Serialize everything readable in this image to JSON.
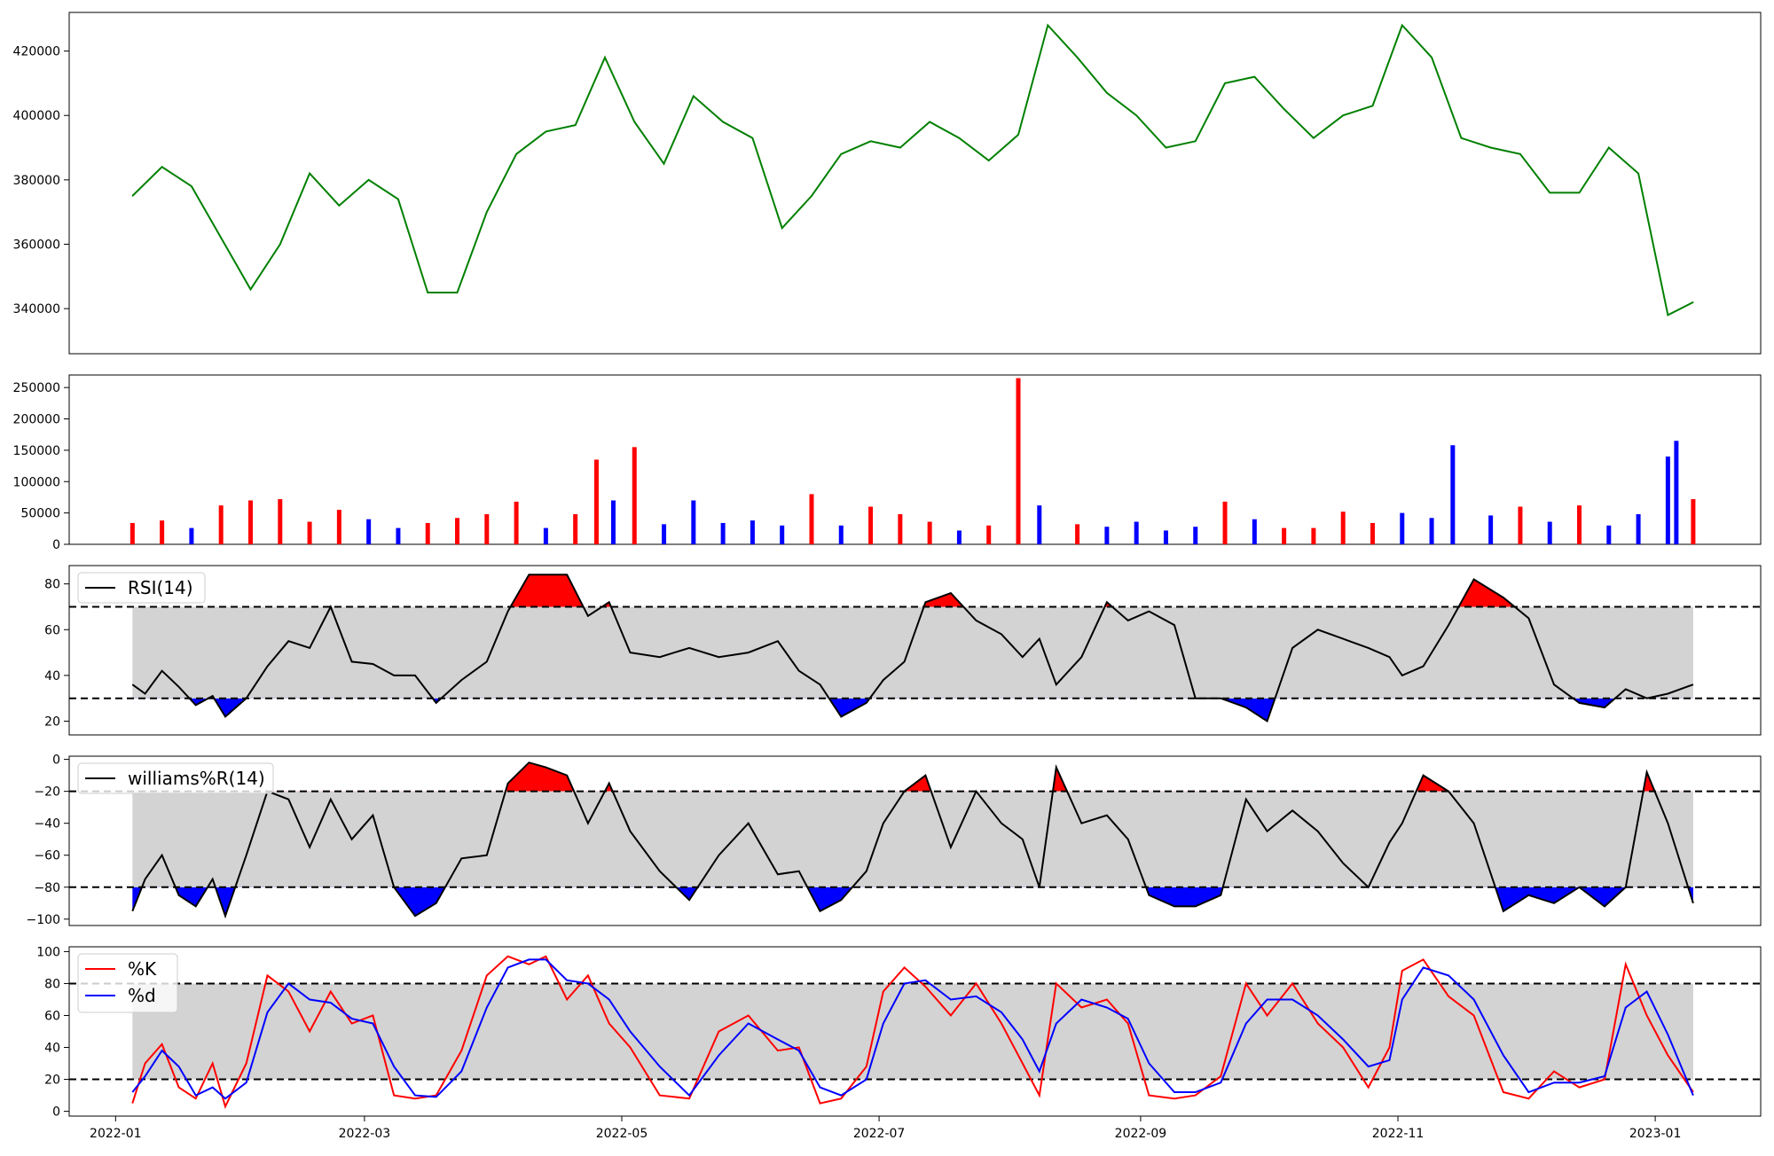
{
  "chart_data": [
    {
      "type": "line",
      "panel": "price",
      "color": "#008000",
      "ylim": [
        326000,
        432000
      ],
      "yticks": [
        340000,
        360000,
        380000,
        400000,
        420000
      ],
      "yticklabels": [
        "340000",
        "360000",
        "380000",
        "400000",
        "420000"
      ],
      "x": [
        "2022-01-05",
        "2022-01-12",
        "2022-01-19",
        "2022-01-26",
        "2022-02-02",
        "2022-02-09",
        "2022-02-16",
        "2022-02-23",
        "2022-03-02",
        "2022-03-09",
        "2022-03-16",
        "2022-03-23",
        "2022-03-30",
        "2022-04-06",
        "2022-04-13",
        "2022-04-20",
        "2022-04-27",
        "2022-05-04",
        "2022-05-11",
        "2022-05-18",
        "2022-05-25",
        "2022-06-01",
        "2022-06-08",
        "2022-06-15",
        "2022-06-22",
        "2022-06-29",
        "2022-07-06",
        "2022-07-13",
        "2022-07-20",
        "2022-07-27",
        "2022-08-03",
        "2022-08-10",
        "2022-08-17",
        "2022-08-24",
        "2022-08-31",
        "2022-09-07",
        "2022-09-14",
        "2022-09-21",
        "2022-09-28",
        "2022-10-05",
        "2022-10-12",
        "2022-10-19",
        "2022-10-26",
        "2022-11-02",
        "2022-11-09",
        "2022-11-16",
        "2022-11-23",
        "2022-11-30",
        "2022-12-07",
        "2022-12-14",
        "2022-12-21",
        "2022-12-28",
        "2023-01-04",
        "2023-01-10"
      ],
      "series": [
        {
          "values": [
            375000,
            384000,
            378000,
            362000,
            346000,
            360000,
            382000,
            372000,
            380000,
            374000,
            345000,
            345000,
            370000,
            388000,
            395000,
            397000,
            418000,
            398000,
            385000,
            406000,
            398000,
            393000,
            365000,
            375000,
            388000,
            392000,
            390000,
            398000,
            393000,
            386000,
            394000,
            428000,
            418000,
            407000,
            400000,
            390000,
            392000,
            410000,
            412000,
            402000,
            393000,
            400000,
            403000,
            428000,
            418000,
            393000,
            390000,
            388000,
            376000,
            376000,
            390000,
            382000,
            338000,
            342000
          ]
        }
      ]
    },
    {
      "type": "bar",
      "panel": "volume",
      "ylim": [
        0,
        270000
      ],
      "yticks": [
        0,
        50000,
        100000,
        150000,
        200000,
        250000
      ],
      "yticklabels": [
        "0",
        "50000",
        "100000",
        "150000",
        "200000",
        "250000"
      ],
      "up_color": "#ff0000",
      "down_color": "#0000ff",
      "flat_color": "#000000",
      "x": [
        "2022-01-05",
        "2022-01-12",
        "2022-01-19",
        "2022-01-26",
        "2022-02-02",
        "2022-02-09",
        "2022-02-16",
        "2022-02-23",
        "2022-03-02",
        "2022-03-09",
        "2022-03-16",
        "2022-03-23",
        "2022-03-30",
        "2022-04-06",
        "2022-04-13",
        "2022-04-20",
        "2022-04-25",
        "2022-04-29",
        "2022-05-04",
        "2022-05-11",
        "2022-05-18",
        "2022-05-25",
        "2022-06-01",
        "2022-06-08",
        "2022-06-15",
        "2022-06-22",
        "2022-06-29",
        "2022-07-06",
        "2022-07-13",
        "2022-07-20",
        "2022-07-27",
        "2022-08-03",
        "2022-08-08",
        "2022-08-17",
        "2022-08-24",
        "2022-08-31",
        "2022-09-07",
        "2022-09-14",
        "2022-09-21",
        "2022-09-28",
        "2022-10-05",
        "2022-10-12",
        "2022-10-19",
        "2022-10-26",
        "2022-11-02",
        "2022-11-09",
        "2022-11-14",
        "2022-11-23",
        "2022-11-30",
        "2022-12-07",
        "2022-12-14",
        "2022-12-21",
        "2022-12-28",
        "2023-01-04",
        "2023-01-06",
        "2023-01-10"
      ],
      "values": [
        34000,
        38000,
        26000,
        62000,
        70000,
        72000,
        36000,
        55000,
        40000,
        26000,
        34000,
        42000,
        48000,
        68000,
        26000,
        48000,
        135000,
        70000,
        155000,
        32000,
        70000,
        34000,
        38000,
        30000,
        80000,
        30000,
        60000,
        48000,
        36000,
        22000,
        30000,
        265000,
        62000,
        32000,
        28000,
        36000,
        22000,
        28000,
        68000,
        40000,
        26000,
        26000,
        52000,
        34000,
        50000,
        42000,
        158000,
        46000,
        60000,
        36000,
        62000,
        30000,
        48000,
        140000,
        165000,
        72000
      ],
      "colors": [
        "r",
        "r",
        "b",
        "r",
        "r",
        "r",
        "r",
        "r",
        "b",
        "b",
        "r",
        "r",
        "r",
        "r",
        "b",
        "r",
        "r",
        "b",
        "r",
        "b",
        "b",
        "b",
        "b",
        "b",
        "r",
        "b",
        "r",
        "r",
        "r",
        "b",
        "r",
        "r",
        "b",
        "r",
        "b",
        "b",
        "b",
        "b",
        "r",
        "b",
        "r",
        "r",
        "r",
        "r",
        "b",
        "b",
        "b",
        "b",
        "r",
        "b",
        "r",
        "b",
        "b",
        "b",
        "b",
        "r"
      ]
    },
    {
      "type": "line",
      "panel": "rsi",
      "ylim": [
        14,
        88
      ],
      "yticks": [
        20,
        40,
        60,
        80
      ],
      "yticklabels": [
        "20",
        "40",
        "60",
        "80"
      ],
      "upper": 70,
      "lower": 30,
      "band_color": "#d3d3d3",
      "over_color": "#ff0000",
      "under_color": "#0000ff",
      "legend": "RSI(14)",
      "x": [
        "2022-01-05",
        "2022-01-08",
        "2022-01-12",
        "2022-01-16",
        "2022-01-20",
        "2022-01-24",
        "2022-01-27",
        "2022-02-01",
        "2022-02-06",
        "2022-02-11",
        "2022-02-16",
        "2022-02-21",
        "2022-02-26",
        "2022-03-03",
        "2022-03-08",
        "2022-03-13",
        "2022-03-18",
        "2022-03-24",
        "2022-03-30",
        "2022-04-04",
        "2022-04-09",
        "2022-04-13",
        "2022-04-18",
        "2022-04-23",
        "2022-04-28",
        "2022-05-03",
        "2022-05-10",
        "2022-05-17",
        "2022-05-24",
        "2022-05-31",
        "2022-06-07",
        "2022-06-12",
        "2022-06-17",
        "2022-06-22",
        "2022-06-28",
        "2022-07-02",
        "2022-07-07",
        "2022-07-12",
        "2022-07-18",
        "2022-07-24",
        "2022-07-30",
        "2022-08-04",
        "2022-08-08",
        "2022-08-12",
        "2022-08-18",
        "2022-08-24",
        "2022-08-29",
        "2022-09-03",
        "2022-09-09",
        "2022-09-14",
        "2022-09-20",
        "2022-09-26",
        "2022-10-01",
        "2022-10-07",
        "2022-10-13",
        "2022-10-19",
        "2022-10-25",
        "2022-10-30",
        "2022-11-02",
        "2022-11-07",
        "2022-11-13",
        "2022-11-19",
        "2022-11-26",
        "2022-12-02",
        "2022-12-08",
        "2022-12-14",
        "2022-12-20",
        "2022-12-25",
        "2022-12-30",
        "2023-01-04",
        "2023-01-10"
      ],
      "series": [
        {
          "name": "RSI(14)",
          "values": [
            36,
            32,
            42,
            35,
            27,
            31,
            22,
            30,
            44,
            55,
            52,
            70,
            46,
            45,
            40,
            40,
            28,
            38,
            46,
            68,
            84,
            84,
            84,
            66,
            72,
            50,
            48,
            52,
            48,
            50,
            55,
            42,
            36,
            22,
            28,
            38,
            46,
            72,
            76,
            64,
            58,
            48,
            56,
            36,
            48,
            72,
            64,
            68,
            62,
            30,
            30,
            26,
            20,
            52,
            60,
            56,
            52,
            48,
            40,
            44,
            62,
            82,
            74,
            65,
            36,
            28,
            26,
            34,
            30,
            32,
            36
          ]
        }
      ]
    },
    {
      "type": "line",
      "panel": "williams",
      "ylim": [
        -104,
        2
      ],
      "yticks": [
        -100,
        -80,
        -60,
        -40,
        -20,
        0
      ],
      "yticklabels": [
        "−100",
        "−80",
        "−60",
        "−40",
        "−20",
        "0"
      ],
      "upper": -20,
      "lower": -80,
      "band_color": "#d3d3d3",
      "over_color": "#ff0000",
      "under_color": "#0000ff",
      "legend": "williams%R(14)",
      "x": [
        "2022-01-05",
        "2022-01-08",
        "2022-01-12",
        "2022-01-16",
        "2022-01-20",
        "2022-01-24",
        "2022-01-27",
        "2022-02-01",
        "2022-02-06",
        "2022-02-11",
        "2022-02-16",
        "2022-02-21",
        "2022-02-26",
        "2022-03-03",
        "2022-03-08",
        "2022-03-13",
        "2022-03-18",
        "2022-03-24",
        "2022-03-30",
        "2022-04-04",
        "2022-04-09",
        "2022-04-13",
        "2022-04-18",
        "2022-04-23",
        "2022-04-28",
        "2022-05-03",
        "2022-05-10",
        "2022-05-17",
        "2022-05-24",
        "2022-05-31",
        "2022-06-07",
        "2022-06-12",
        "2022-06-17",
        "2022-06-22",
        "2022-06-28",
        "2022-07-02",
        "2022-07-07",
        "2022-07-12",
        "2022-07-18",
        "2022-07-24",
        "2022-07-30",
        "2022-08-04",
        "2022-08-08",
        "2022-08-12",
        "2022-08-18",
        "2022-08-24",
        "2022-08-29",
        "2022-09-03",
        "2022-09-09",
        "2022-09-14",
        "2022-09-20",
        "2022-09-26",
        "2022-10-01",
        "2022-10-07",
        "2022-10-13",
        "2022-10-19",
        "2022-10-25",
        "2022-10-30",
        "2022-11-02",
        "2022-11-07",
        "2022-11-13",
        "2022-11-19",
        "2022-11-26",
        "2022-12-02",
        "2022-12-08",
        "2022-12-14",
        "2022-12-20",
        "2022-12-25",
        "2022-12-30",
        "2023-01-04",
        "2023-01-10"
      ],
      "series": [
        {
          "name": "williams%R(14)",
          "values": [
            -95,
            -75,
            -60,
            -85,
            -92,
            -75,
            -98,
            -60,
            -20,
            -25,
            -55,
            -25,
            -50,
            -35,
            -80,
            -98,
            -90,
            -62,
            -60,
            -15,
            -2,
            -5,
            -10,
            -40,
            -15,
            -45,
            -70,
            -88,
            -60,
            -40,
            -72,
            -70,
            -95,
            -88,
            -70,
            -40,
            -20,
            -10,
            -55,
            -20,
            -40,
            -50,
            -80,
            -5,
            -40,
            -35,
            -50,
            -85,
            -92,
            -92,
            -85,
            -25,
            -45,
            -32,
            -45,
            -65,
            -80,
            -52,
            -40,
            -10,
            -20,
            -40,
            -95,
            -85,
            -90,
            -80,
            -92,
            -80,
            -8,
            -40,
            -90
          ]
        }
      ]
    },
    {
      "type": "line",
      "panel": "stochastic",
      "ylim": [
        -3,
        103
      ],
      "yticks": [
        0,
        20,
        40,
        60,
        80,
        100
      ],
      "yticklabels": [
        "0",
        "20",
        "40",
        "60",
        "80",
        "100"
      ],
      "upper": 80,
      "lower": 20,
      "band_color": "#d3d3d3",
      "legend": [
        "%K",
        "%d"
      ],
      "x": [
        "2022-01-05",
        "2022-01-08",
        "2022-01-12",
        "2022-01-16",
        "2022-01-20",
        "2022-01-24",
        "2022-01-27",
        "2022-02-01",
        "2022-02-06",
        "2022-02-11",
        "2022-02-16",
        "2022-02-21",
        "2022-02-26",
        "2022-03-03",
        "2022-03-08",
        "2022-03-13",
        "2022-03-18",
        "2022-03-24",
        "2022-03-30",
        "2022-04-04",
        "2022-04-09",
        "2022-04-13",
        "2022-04-18",
        "2022-04-23",
        "2022-04-28",
        "2022-05-03",
        "2022-05-10",
        "2022-05-17",
        "2022-05-24",
        "2022-05-31",
        "2022-06-07",
        "2022-06-12",
        "2022-06-17",
        "2022-06-22",
        "2022-06-28",
        "2022-07-02",
        "2022-07-07",
        "2022-07-12",
        "2022-07-18",
        "2022-07-24",
        "2022-07-30",
        "2022-08-04",
        "2022-08-08",
        "2022-08-12",
        "2022-08-18",
        "2022-08-24",
        "2022-08-29",
        "2022-09-03",
        "2022-09-09",
        "2022-09-14",
        "2022-09-20",
        "2022-09-26",
        "2022-10-01",
        "2022-10-07",
        "2022-10-13",
        "2022-10-19",
        "2022-10-25",
        "2022-10-30",
        "2022-11-02",
        "2022-11-07",
        "2022-11-13",
        "2022-11-19",
        "2022-11-26",
        "2022-12-02",
        "2022-12-08",
        "2022-12-14",
        "2022-12-20",
        "2022-12-25",
        "2022-12-30",
        "2023-01-04",
        "2023-01-10"
      ],
      "series": [
        {
          "name": "%K",
          "color": "#ff0000",
          "values": [
            5,
            30,
            42,
            15,
            8,
            30,
            3,
            30,
            85,
            75,
            50,
            75,
            55,
            60,
            10,
            8,
            10,
            38,
            85,
            97,
            92,
            97,
            70,
            85,
            55,
            40,
            10,
            8,
            50,
            60,
            38,
            40,
            5,
            8,
            28,
            75,
            90,
            78,
            60,
            80,
            55,
            30,
            10,
            80,
            65,
            70,
            55,
            10,
            8,
            10,
            22,
            80,
            60,
            80,
            55,
            40,
            15,
            40,
            88,
            95,
            72,
            60,
            12,
            8,
            25,
            15,
            20,
            92,
            60,
            35,
            12
          ]
        },
        {
          "name": "%d",
          "color": "#0000ff",
          "values": [
            12,
            22,
            38,
            28,
            10,
            15,
            8,
            18,
            62,
            80,
            70,
            68,
            58,
            55,
            28,
            10,
            9,
            25,
            65,
            90,
            95,
            95,
            82,
            80,
            70,
            50,
            28,
            10,
            35,
            55,
            45,
            38,
            15,
            10,
            20,
            55,
            80,
            82,
            70,
            72,
            62,
            45,
            25,
            55,
            70,
            65,
            58,
            30,
            12,
            12,
            18,
            55,
            70,
            70,
            60,
            45,
            28,
            32,
            70,
            90,
            85,
            70,
            35,
            12,
            18,
            18,
            22,
            65,
            75,
            48,
            10
          ]
        }
      ]
    }
  ],
  "xaxis": {
    "range": [
      "2021-12-21",
      "2023-01-26"
    ],
    "ticks": [
      "2022-01-01",
      "2022-03-01",
      "2022-05-01",
      "2022-07-01",
      "2022-09-01",
      "2022-11-01",
      "2023-01-01"
    ],
    "ticklabels": [
      "2022-01",
      "2022-03",
      "2022-05",
      "2022-07",
      "2022-09",
      "2022-11",
      "2023-01"
    ]
  }
}
